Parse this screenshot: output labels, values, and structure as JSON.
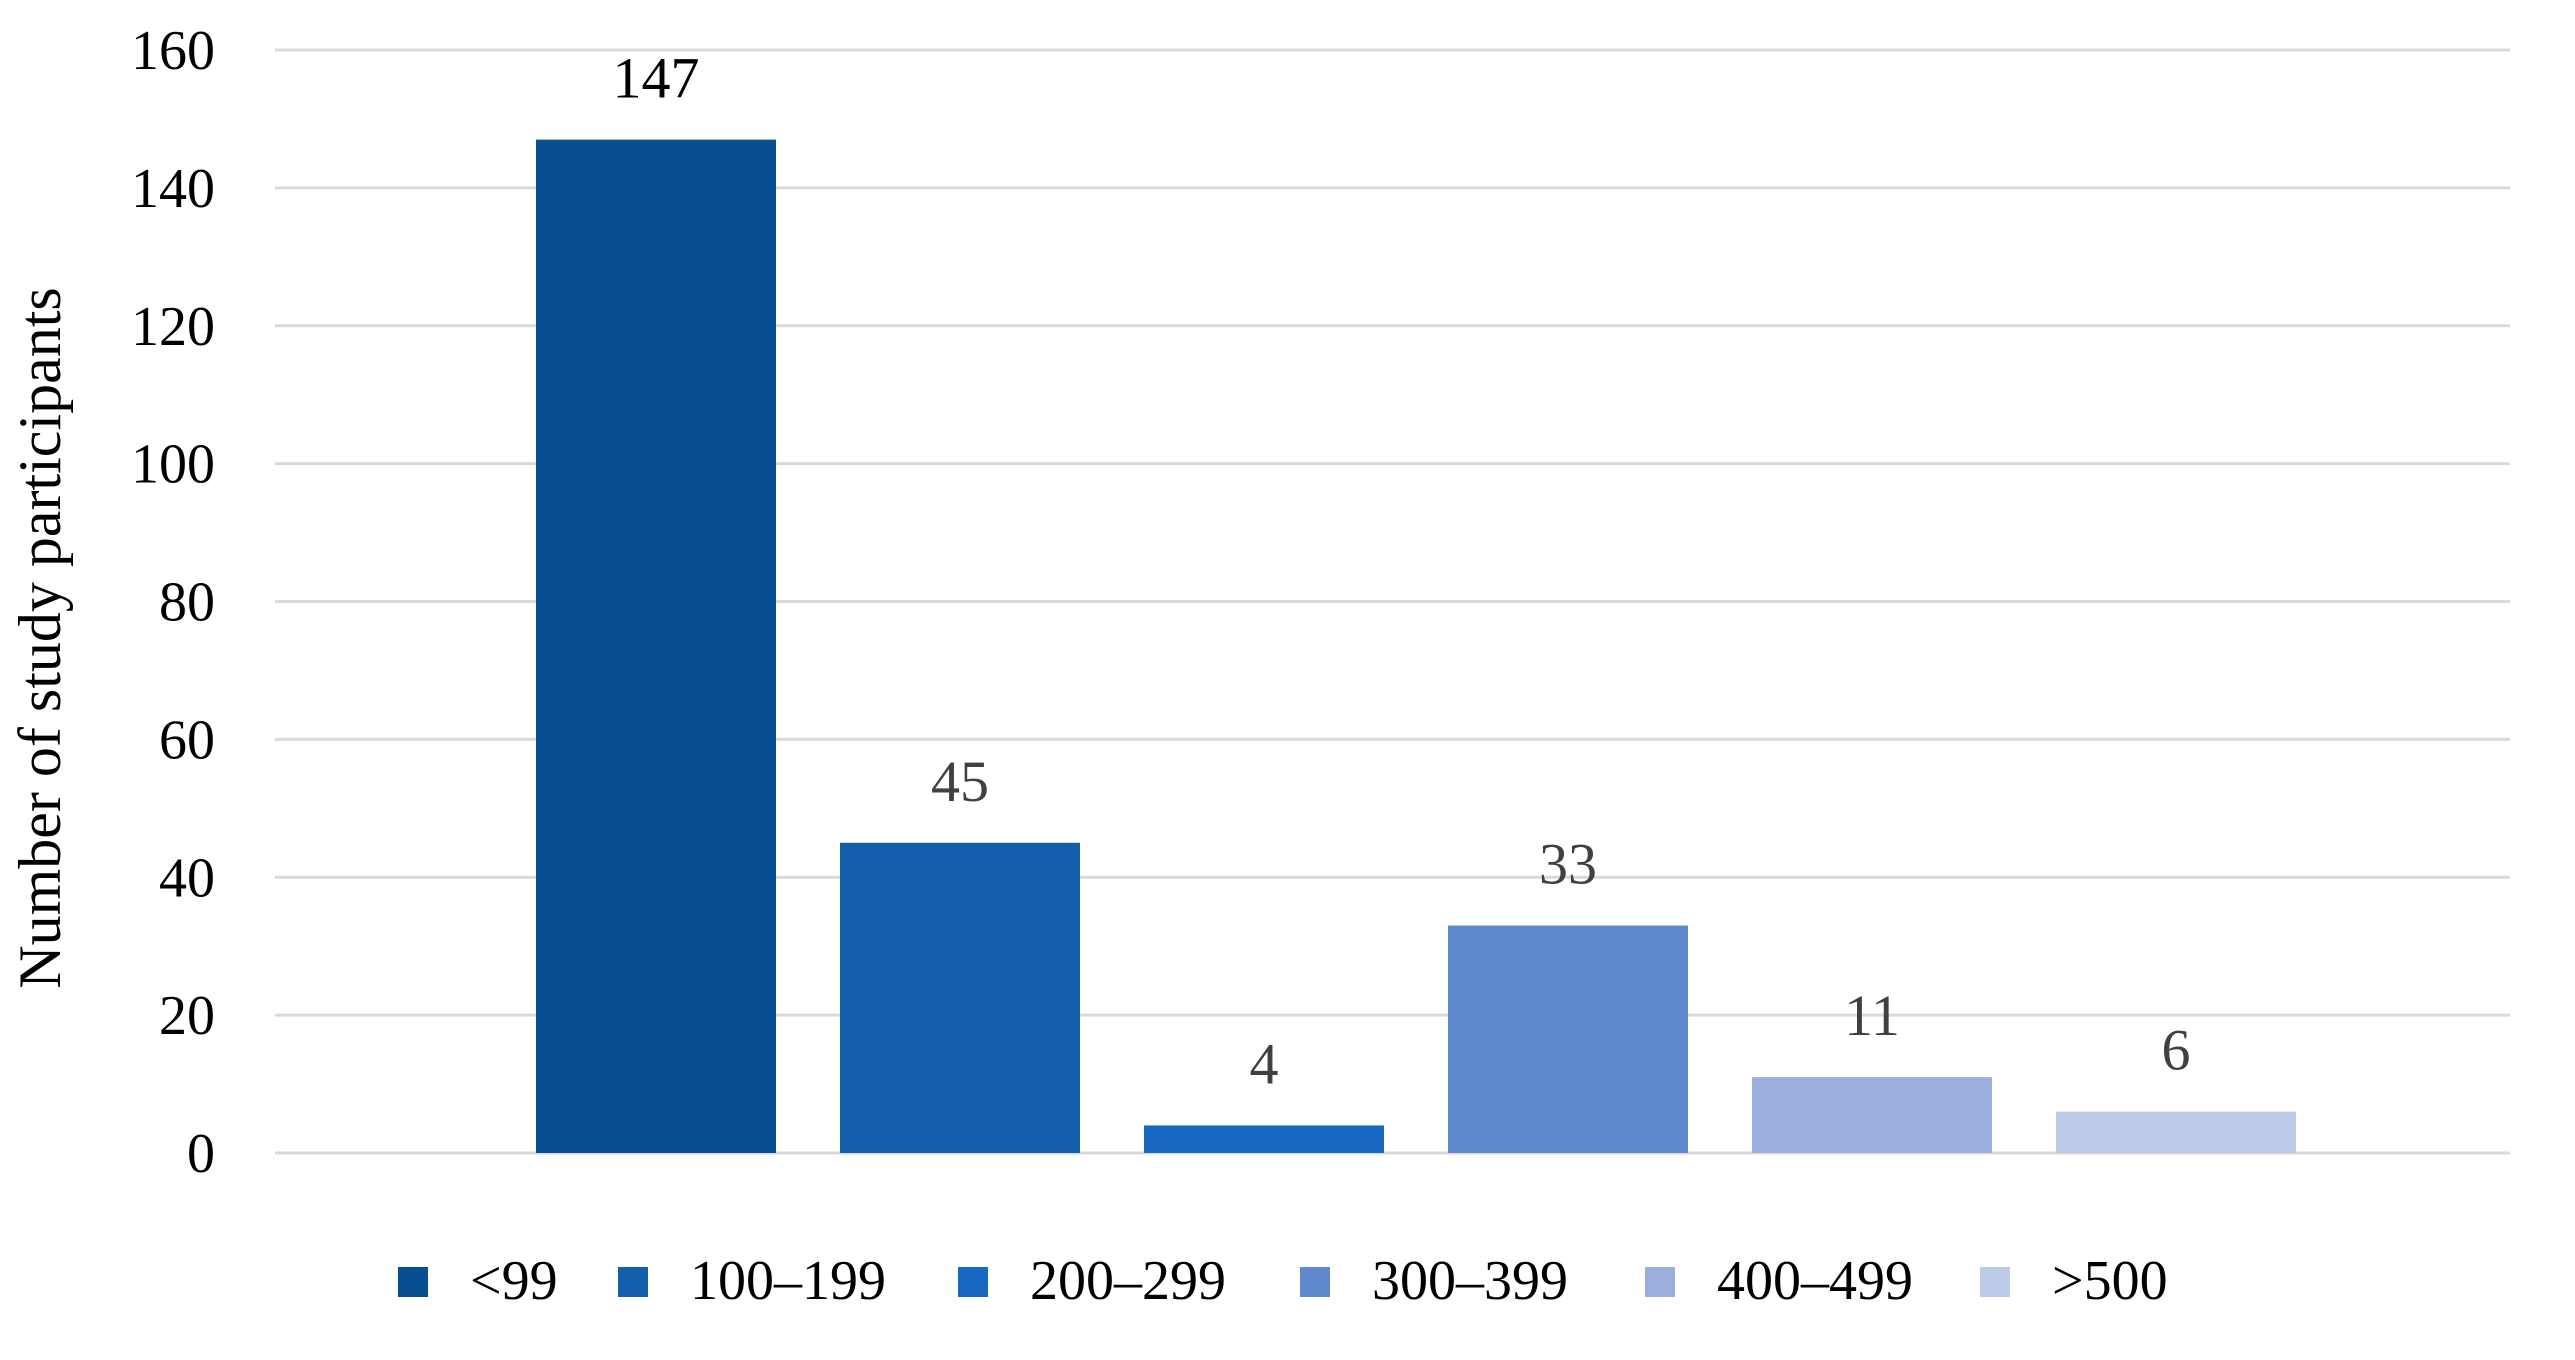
{
  "chart_data": {
    "type": "bar",
    "title": "",
    "xlabel": "",
    "ylabel": "Number of study participants",
    "ylim": [
      0,
      160
    ],
    "yticks": [
      0,
      20,
      40,
      60,
      80,
      100,
      120,
      140,
      160
    ],
    "grid": true,
    "legend_position": "bottom",
    "series": [
      {
        "name": "<99",
        "value": 147,
        "color": "#084f91"
      },
      {
        "name": "100–199",
        "value": 45,
        "color": "#145eab"
      },
      {
        "name": "200–299",
        "value": 4,
        "color": "#1867c0"
      },
      {
        "name": "300–399",
        "value": 33,
        "color": "#6088cd"
      },
      {
        "name": "400–499",
        "value": 11,
        "color": "#9aafdc"
      },
      {
        "name": ">500",
        "value": 6,
        "color": "#bccbe7"
      }
    ],
    "data_labels": [
      "147",
      "45",
      "4",
      "33",
      "11",
      "6"
    ]
  }
}
